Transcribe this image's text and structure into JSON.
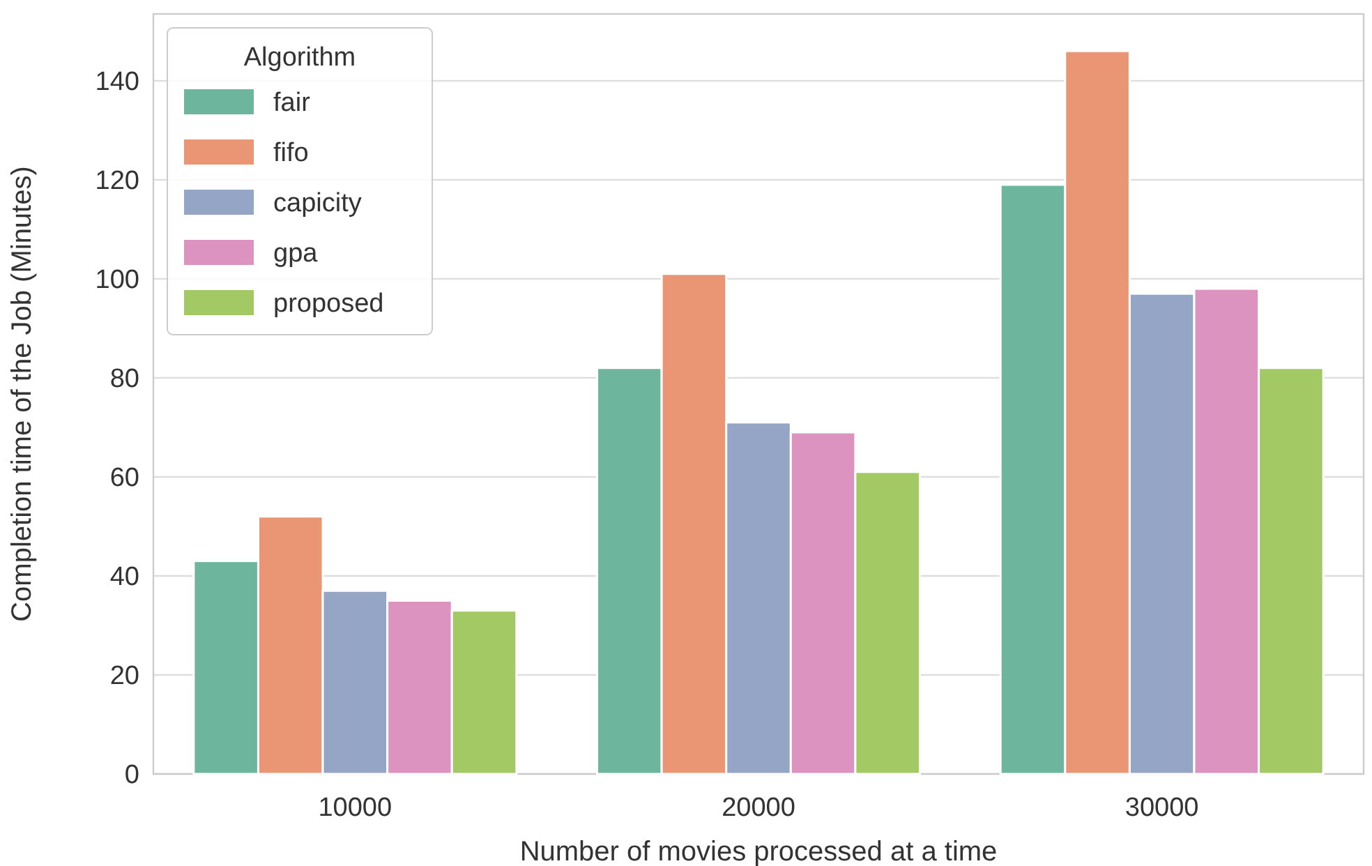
{
  "chart_data": {
    "type": "bar",
    "xlabel": "Number of movies processed at a time",
    "ylabel": "Completion time of the Job (Minutes)",
    "legend_title": "Algorithm",
    "categories": [
      "10000",
      "20000",
      "30000"
    ],
    "series": [
      {
        "name": "fair",
        "color": "#6db59d",
        "values": [
          43,
          82,
          119
        ]
      },
      {
        "name": "fifo",
        "color": "#ea9675",
        "values": [
          52,
          101,
          146
        ]
      },
      {
        "name": "capicity",
        "color": "#94a5c6",
        "values": [
          37,
          71,
          97
        ]
      },
      {
        "name": "gpa",
        "color": "#dc93bf",
        "values": [
          35,
          69,
          98
        ]
      },
      {
        "name": "proposed",
        "color": "#a3c964",
        "values": [
          33,
          61,
          82
        ]
      }
    ],
    "ylim": [
      0,
      153.5
    ],
    "yticks": [
      0,
      20,
      40,
      60,
      80,
      100,
      120,
      140
    ],
    "grid": "y",
    "legend": "top left"
  }
}
